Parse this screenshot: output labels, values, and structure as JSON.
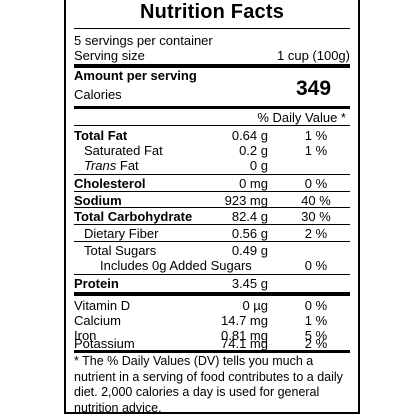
{
  "title": "Nutrition Facts",
  "servings_per_container": "5 servings per container",
  "serving_size_label": "Serving size",
  "serving_size_value": "1 cup (100g)",
  "amount_per_serving": "Amount per serving",
  "calories_label": "Calories",
  "calories_value": "349",
  "daily_value_header": "% Daily Value *",
  "nutrients": [
    {
      "label": "Total Fat",
      "amount": "0.64 g",
      "dv": "1 %"
    },
    {
      "label": "Saturated Fat",
      "amount": "0.2 g",
      "dv": "1 %"
    },
    {
      "label": "Trans",
      "label_suffix": " Fat",
      "amount": "0 g",
      "dv": ""
    },
    {
      "label": "Cholesterol",
      "amount": "0 mg",
      "dv": "0 %"
    },
    {
      "label": "Sodium",
      "amount": "923 mg",
      "dv": "40 %"
    },
    {
      "label": "Total Carbohydrate",
      "amount": "82.4 g",
      "dv": "30 %"
    },
    {
      "label": "Dietary Fiber",
      "amount": "0.56 g",
      "dv": "2 %"
    },
    {
      "label": "Total Sugars",
      "amount": "0.49 g",
      "dv": ""
    },
    {
      "label": "Includes 0g Added Sugars",
      "amount": "",
      "dv": "0 %"
    },
    {
      "label": "Protein",
      "amount": "3.45 g",
      "dv": ""
    }
  ],
  "vitamins": [
    {
      "label": "Vitamin D",
      "amount": "0 µg",
      "dv": "0 %"
    },
    {
      "label": "Calcium",
      "amount": "14.7 mg",
      "dv": "1 %"
    },
    {
      "label": "Iron",
      "amount": "0.81 mg",
      "dv": "5 %"
    },
    {
      "label": "Potassium",
      "amount": "74.1 mg",
      "dv": "2 %"
    }
  ],
  "footnote": "* The % Daily Values (DV) tells you much a nutrient in a serving of food contributes to a daily diet. 2,000 calories a day is used for general nutrition advice."
}
